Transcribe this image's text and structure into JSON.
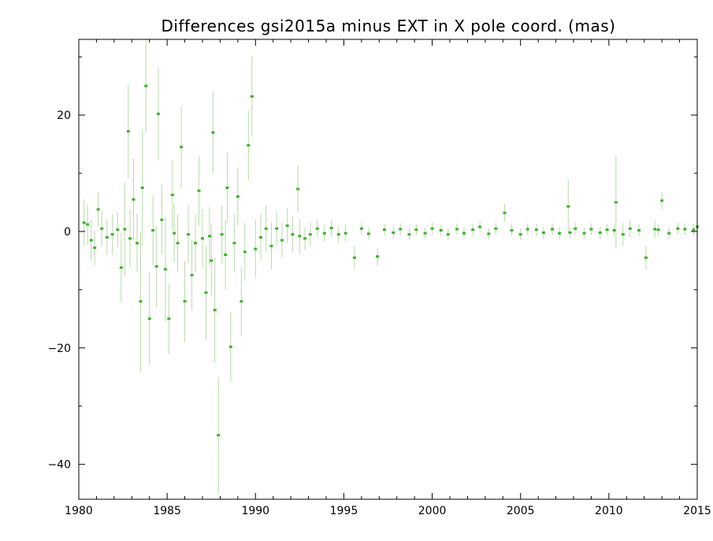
{
  "chart_data": {
    "type": "scatter",
    "title": "Differences gsi2015a minus EXT in X pole coord. (mas)",
    "xlabel": "",
    "ylabel": "",
    "xlim": [
      1980,
      2015
    ],
    "ylim": [
      -46,
      33
    ],
    "xticks": [
      1980,
      1985,
      1990,
      1995,
      2000,
      2005,
      2010,
      2015
    ],
    "yticks": [
      -40,
      -20,
      0,
      20
    ],
    "ytick_labels": [
      "−40",
      "−20",
      "0",
      "20"
    ],
    "grid": false,
    "legend": "none",
    "colors": {
      "points": "#3cb22a",
      "error_bars": "#b8d9a8"
    },
    "series": [
      {
        "x": [
          1980.3,
          1980.5,
          1980.7,
          1980.9,
          1981.1,
          1981.3,
          1981.6,
          1981.9,
          1982.2,
          1982.4,
          1982.6,
          1982.8,
          1982.9,
          1983.1,
          1983.3,
          1983.5,
          1983.6,
          1983.8,
          1984.0,
          1984.2,
          1984.4,
          1984.5,
          1984.7,
          1984.9,
          1985.1,
          1985.3,
          1985.4,
          1985.6,
          1985.8,
          1986.0,
          1986.2,
          1986.4,
          1986.6,
          1986.8,
          1987.0,
          1987.2,
          1987.4,
          1987.5,
          1987.6,
          1987.7,
          1987.9,
          1988.1,
          1988.3,
          1988.4,
          1988.6,
          1988.8,
          1989.0,
          1989.2,
          1989.4,
          1989.6,
          1989.8,
          1990.0,
          1990.3,
          1990.6,
          1990.9,
          1991.2,
          1991.5,
          1991.8,
          1992.1,
          1992.4,
          1992.5,
          1992.8,
          1993.1,
          1993.5,
          1993.9,
          1994.3,
          1994.7,
          1995.1,
          1995.6,
          1996.0,
          1996.4,
          1996.9,
          1997.3,
          1997.8,
          1998.2,
          1998.7,
          1999.1,
          1999.6,
          2000.0,
          2000.5,
          2000.9,
          2001.4,
          2001.8,
          2002.3,
          2002.7,
          2003.2,
          2003.6,
          2004.1,
          2004.5,
          2005.0,
          2005.4,
          2005.9,
          2006.3,
          2006.8,
          2007.2,
          2007.7,
          2007.8,
          2008.1,
          2008.6,
          2009.0,
          2009.5,
          2009.9,
          2010.3,
          2010.4,
          2010.8,
          2011.2,
          2011.7,
          2012.1,
          2012.6,
          2012.8,
          2013.0,
          2013.4,
          2013.9,
          2014.3,
          2014.8,
          2015.0
        ],
        "y": [
          1.5,
          1.2,
          -1.5,
          -2.8,
          3.8,
          0.5,
          -1.0,
          -0.5,
          0.3,
          -6.2,
          0.4,
          17.2,
          -1.2,
          5.5,
          -2.0,
          -12.0,
          7.5,
          25.0,
          -15.0,
          0.2,
          -6.0,
          20.2,
          2.0,
          -6.5,
          -15.0,
          6.3,
          -0.3,
          -2.0,
          14.5,
          -12.0,
          -0.5,
          -7.5,
          -2.0,
          7.0,
          -1.2,
          -10.5,
          -0.8,
          -5.0,
          17.0,
          -13.5,
          -35.0,
          -0.5,
          -4.0,
          7.5,
          -19.8,
          -2.0,
          6.0,
          -12.0,
          -3.5,
          14.8,
          23.2,
          -3.0,
          -1.0,
          0.5,
          -2.5,
          0.5,
          -1.5,
          1.0,
          -0.5,
          7.3,
          -0.8,
          -1.2,
          -0.5,
          0.5,
          -0.3,
          0.6,
          -0.5,
          -0.3,
          -4.5,
          0.5,
          -0.4,
          -4.3,
          0.3,
          -0.2,
          0.4,
          -0.5,
          0.3,
          -0.3,
          0.5,
          0.2,
          -0.5,
          0.4,
          -0.3,
          0.3,
          0.8,
          -0.4,
          0.5,
          3.2,
          0.2,
          -0.5,
          0.4,
          0.3,
          -0.2,
          0.4,
          -0.3,
          4.3,
          -0.2,
          0.5,
          -0.3,
          0.4,
          -0.2,
          0.3,
          0.2,
          5.0,
          -0.5,
          0.5,
          0.2,
          -4.5,
          0.4,
          0.3,
          5.3,
          -0.3,
          0.5,
          0.4,
          0.3,
          0.8
        ],
        "yerr": [
          4.0,
          3.5,
          3.5,
          3.0,
          3.0,
          3.0,
          3.0,
          3.5,
          3.0,
          6.0,
          8.0,
          8.0,
          5.0,
          7.0,
          5.0,
          12.0,
          10.0,
          8.0,
          8.0,
          6.0,
          7.0,
          8.0,
          6.0,
          9.0,
          6.0,
          6.0,
          5.0,
          5.0,
          7.0,
          7.0,
          5.0,
          6.0,
          5.0,
          6.0,
          5.0,
          8.0,
          5.0,
          6.0,
          7.0,
          9.0,
          10.0,
          5.0,
          6.0,
          6.0,
          6.0,
          5.0,
          5.0,
          6.0,
          5.0,
          6.0,
          7.0,
          5.0,
          4.0,
          4.0,
          4.0,
          3.0,
          3.0,
          3.0,
          3.0,
          4.0,
          3.0,
          2.0,
          2.0,
          1.5,
          1.5,
          1.5,
          1.5,
          1.5,
          2.0,
          1.0,
          1.0,
          1.5,
          1.0,
          1.0,
          1.0,
          1.0,
          1.0,
          1.0,
          1.0,
          1.0,
          1.0,
          1.0,
          1.0,
          1.0,
          1.0,
          1.0,
          1.0,
          1.5,
          1.0,
          1.0,
          1.0,
          1.0,
          1.0,
          1.0,
          1.0,
          4.5,
          1.0,
          1.0,
          1.0,
          1.0,
          1.0,
          1.0,
          1.0,
          8.0,
          2.0,
          1.5,
          1.0,
          2.0,
          1.5,
          1.0,
          1.5,
          1.0,
          1.0,
          1.0,
          1.0,
          1.0
        ]
      }
    ]
  }
}
